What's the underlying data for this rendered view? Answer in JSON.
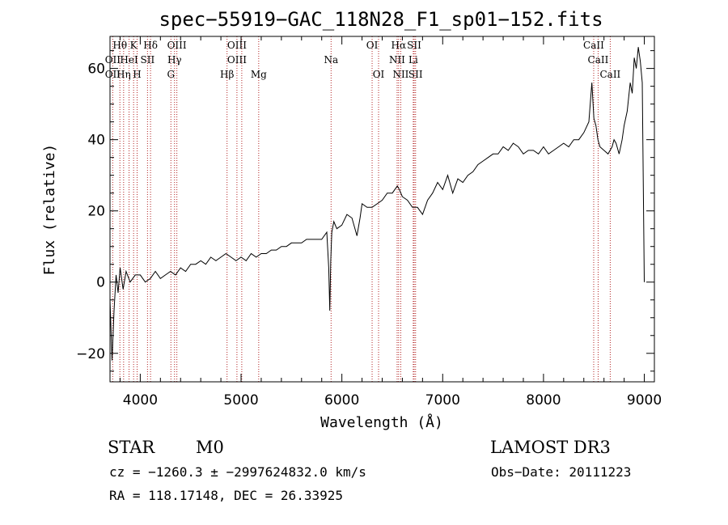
{
  "chart_data": {
    "type": "line",
    "title": "spec−55919−GAC_118N28_F1_sp01−152.fits",
    "xlabel": "Wavelength (Å)",
    "ylabel": "Flux (relative)",
    "xlim": [
      3700,
      9100
    ],
    "ylim": [
      -28,
      69
    ],
    "x_ticks": [
      4000,
      5000,
      6000,
      7000,
      8000,
      9000
    ],
    "x_tick_labels": [
      "4000",
      "5000",
      "6000",
      "7000",
      "8000",
      "9000"
    ],
    "y_ticks": [
      -20,
      0,
      20,
      40,
      60
    ],
    "y_tick_labels": [
      "−20",
      "0",
      "20",
      "40",
      "60"
    ],
    "series": [
      {
        "name": "flux",
        "x": [
          3700,
          3720,
          3740,
          3760,
          3780,
          3800,
          3830,
          3860,
          3900,
          3950,
          4000,
          4050,
          4100,
          4150,
          4200,
          4250,
          4300,
          4350,
          4400,
          4450,
          4500,
          4550,
          4600,
          4650,
          4700,
          4750,
          4800,
          4850,
          4900,
          4950,
          5000,
          5050,
          5100,
          5150,
          5200,
          5250,
          5300,
          5350,
          5400,
          5450,
          5500,
          5550,
          5600,
          5650,
          5700,
          5750,
          5800,
          5850,
          5870,
          5880,
          5890,
          5900,
          5920,
          5950,
          6000,
          6050,
          6100,
          6150,
          6180,
          6200,
          6250,
          6300,
          6350,
          6400,
          6450,
          6500,
          6550,
          6570,
          6600,
          6650,
          6700,
          6750,
          6800,
          6850,
          6900,
          6950,
          7000,
          7050,
          7100,
          7150,
          7200,
          7250,
          7300,
          7350,
          7400,
          7450,
          7500,
          7550,
          7600,
          7650,
          7700,
          7750,
          7800,
          7850,
          7900,
          7950,
          8000,
          8050,
          8100,
          8150,
          8200,
          8250,
          8300,
          8350,
          8400,
          8450,
          8480,
          8500,
          8520,
          8540,
          8560,
          8600,
          8640,
          8680,
          8700,
          8720,
          8750,
          8780,
          8800,
          8830,
          8860,
          8880,
          8900,
          8920,
          8940,
          8960,
          8980,
          9000
        ],
        "y": [
          -5,
          -22,
          -8,
          2,
          -3,
          4,
          -2,
          3,
          0,
          2,
          2,
          0,
          1,
          3,
          1,
          2,
          3,
          2,
          4,
          3,
          5,
          5,
          6,
          5,
          7,
          6,
          7,
          8,
          7,
          6,
          7,
          6,
          8,
          7,
          8,
          8,
          9,
          9,
          10,
          10,
          11,
          11,
          11,
          12,
          12,
          12,
          12,
          14,
          4,
          -8,
          6,
          14,
          17,
          15,
          16,
          19,
          18,
          13,
          18,
          22,
          21,
          21,
          22,
          23,
          25,
          25,
          27,
          26,
          24,
          23,
          21,
          21,
          19,
          23,
          25,
          28,
          26,
          30,
          25,
          29,
          28,
          30,
          31,
          33,
          34,
          35,
          36,
          36,
          38,
          37,
          39,
          38,
          36,
          37,
          37,
          36,
          38,
          36,
          37,
          38,
          39,
          38,
          40,
          40,
          42,
          45,
          56,
          46,
          44,
          40,
          38,
          37,
          36,
          38,
          40,
          39,
          36,
          40,
          44,
          48,
          56,
          53,
          63,
          60,
          66,
          62,
          56,
          0
        ]
      }
    ],
    "line_markers": [
      {
        "label": "Hθ",
        "wavelength": 3798,
        "row": 0
      },
      {
        "label": "OII",
        "wavelength": 3727,
        "row": 1
      },
      {
        "label": "OII",
        "wavelength": 3727,
        "row": 2
      },
      {
        "label": "K",
        "wavelength": 3934,
        "row": 0
      },
      {
        "label": "Hη",
        "wavelength": 3835,
        "row": 2
      },
      {
        "label": "HeI",
        "wavelength": 3889,
        "row": 1
      },
      {
        "label": "SII",
        "wavelength": 4072,
        "row": 1
      },
      {
        "label": "H",
        "wavelength": 3969,
        "row": 2
      },
      {
        "label": "Hδ",
        "wavelength": 4102,
        "row": 0
      },
      {
        "label": "OIII",
        "wavelength": 4363,
        "row": 0
      },
      {
        "label": "Hγ",
        "wavelength": 4340,
        "row": 1
      },
      {
        "label": "G",
        "wavelength": 4304,
        "row": 2
      },
      {
        "label": "OIII",
        "wavelength": 4959,
        "row": 0
      },
      {
        "label": "OIII",
        "wavelength": 4959,
        "row": 1
      },
      {
        "label": "Hβ",
        "wavelength": 4861,
        "row": 2
      },
      {
        "label": "Mg",
        "wavelength": 5175,
        "row": 2
      },
      {
        "label": "Na",
        "wavelength": 5893,
        "row": 1
      },
      {
        "label": "OI",
        "wavelength": 6300,
        "row": 0
      },
      {
        "label": "OI",
        "wavelength": 6364,
        "row": 2
      },
      {
        "label": "Hα",
        "wavelength": 6563,
        "row": 0
      },
      {
        "label": "NII",
        "wavelength": 6548,
        "row": 1
      },
      {
        "label": "NII",
        "wavelength": 6584,
        "row": 2
      },
      {
        "label": "SII",
        "wavelength": 6717,
        "row": 0
      },
      {
        "label": "Li",
        "wavelength": 6708,
        "row": 1
      },
      {
        "label": "SII",
        "wavelength": 6731,
        "row": 2
      },
      {
        "label": "CaII",
        "wavelength": 8498,
        "row": 0
      },
      {
        "label": "CaII",
        "wavelength": 8542,
        "row": 1
      },
      {
        "label": "CaII",
        "wavelength": 8662,
        "row": 2
      }
    ],
    "marker_lines": [
      3727,
      3798,
      3835,
      3889,
      3934,
      3969,
      4072,
      4102,
      4304,
      4340,
      4363,
      4861,
      4959,
      5007,
      5175,
      5893,
      6300,
      6364,
      6548,
      6563,
      6584,
      6708,
      6717,
      6731,
      8498,
      8542,
      8662
    ],
    "marker_color": "#b22222",
    "grid": false
  },
  "footer": {
    "class_label": "STAR",
    "subclass_label": "M0",
    "survey": "LAMOST DR3",
    "cz": "cz = −1260.3 ± −2997624832.0 km/s",
    "obs_date": "Obs−Date: 20111223",
    "coords": "RA = 118.17148, DEC =  26.33925"
  }
}
